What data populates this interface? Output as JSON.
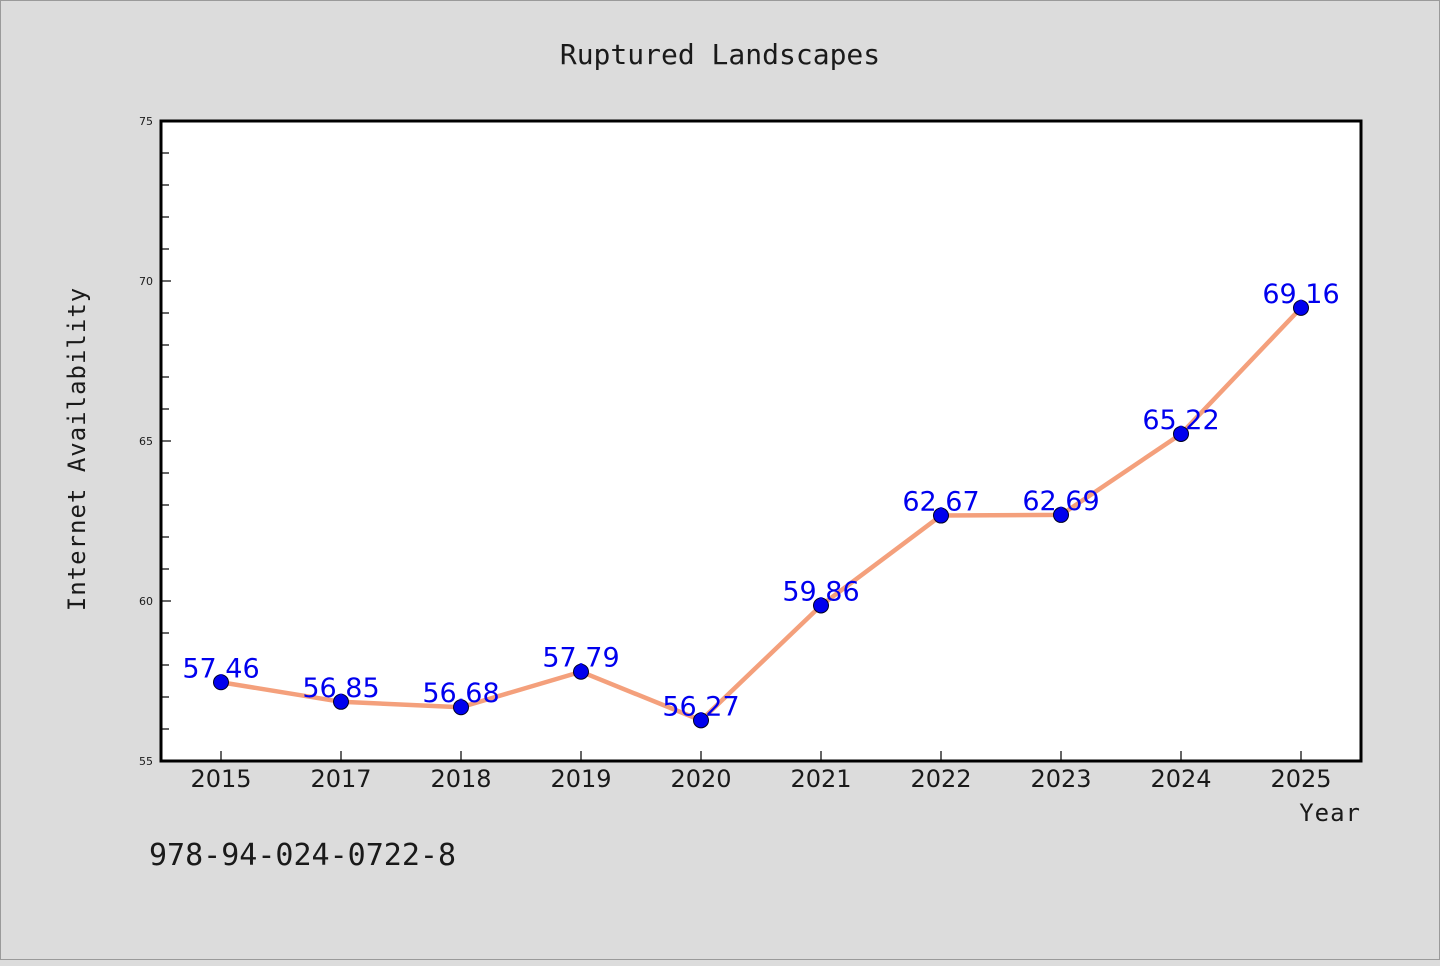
{
  "colors": {
    "background": "#dcdcdc",
    "plot_background": "#ffffff",
    "line": "#f4a07c",
    "marker": "#0000ee",
    "data_label": "#0000ee"
  },
  "footer": {
    "isbn": "978-94-024-0722-8"
  },
  "chart_data": {
    "type": "line",
    "title": "Ruptured Landscapes",
    "xlabel": "Year",
    "ylabel": "Internet Availability",
    "categories": [
      "2015",
      "2017",
      "2018",
      "2019",
      "2020",
      "2021",
      "2022",
      "2023",
      "2024",
      "2025"
    ],
    "series": [
      {
        "values": [
          57.46,
          56.85,
          56.68,
          57.79,
          56.27,
          59.86,
          62.67,
          62.69,
          65.22,
          69.16
        ],
        "labels": [
          "57.46",
          "56.85",
          "56.68",
          "57.79",
          "56.27",
          "59.86",
          "62.67",
          "62.69",
          "65.22",
          "69.16"
        ]
      }
    ],
    "ylim": [
      55,
      75
    ],
    "y_major_ticks": [
      55,
      60,
      65,
      70,
      75
    ],
    "y_tick_labels": [
      "55",
      "60",
      "65",
      "70",
      "75"
    ],
    "y_minor_step": 1,
    "grid": false,
    "legend": "none"
  }
}
